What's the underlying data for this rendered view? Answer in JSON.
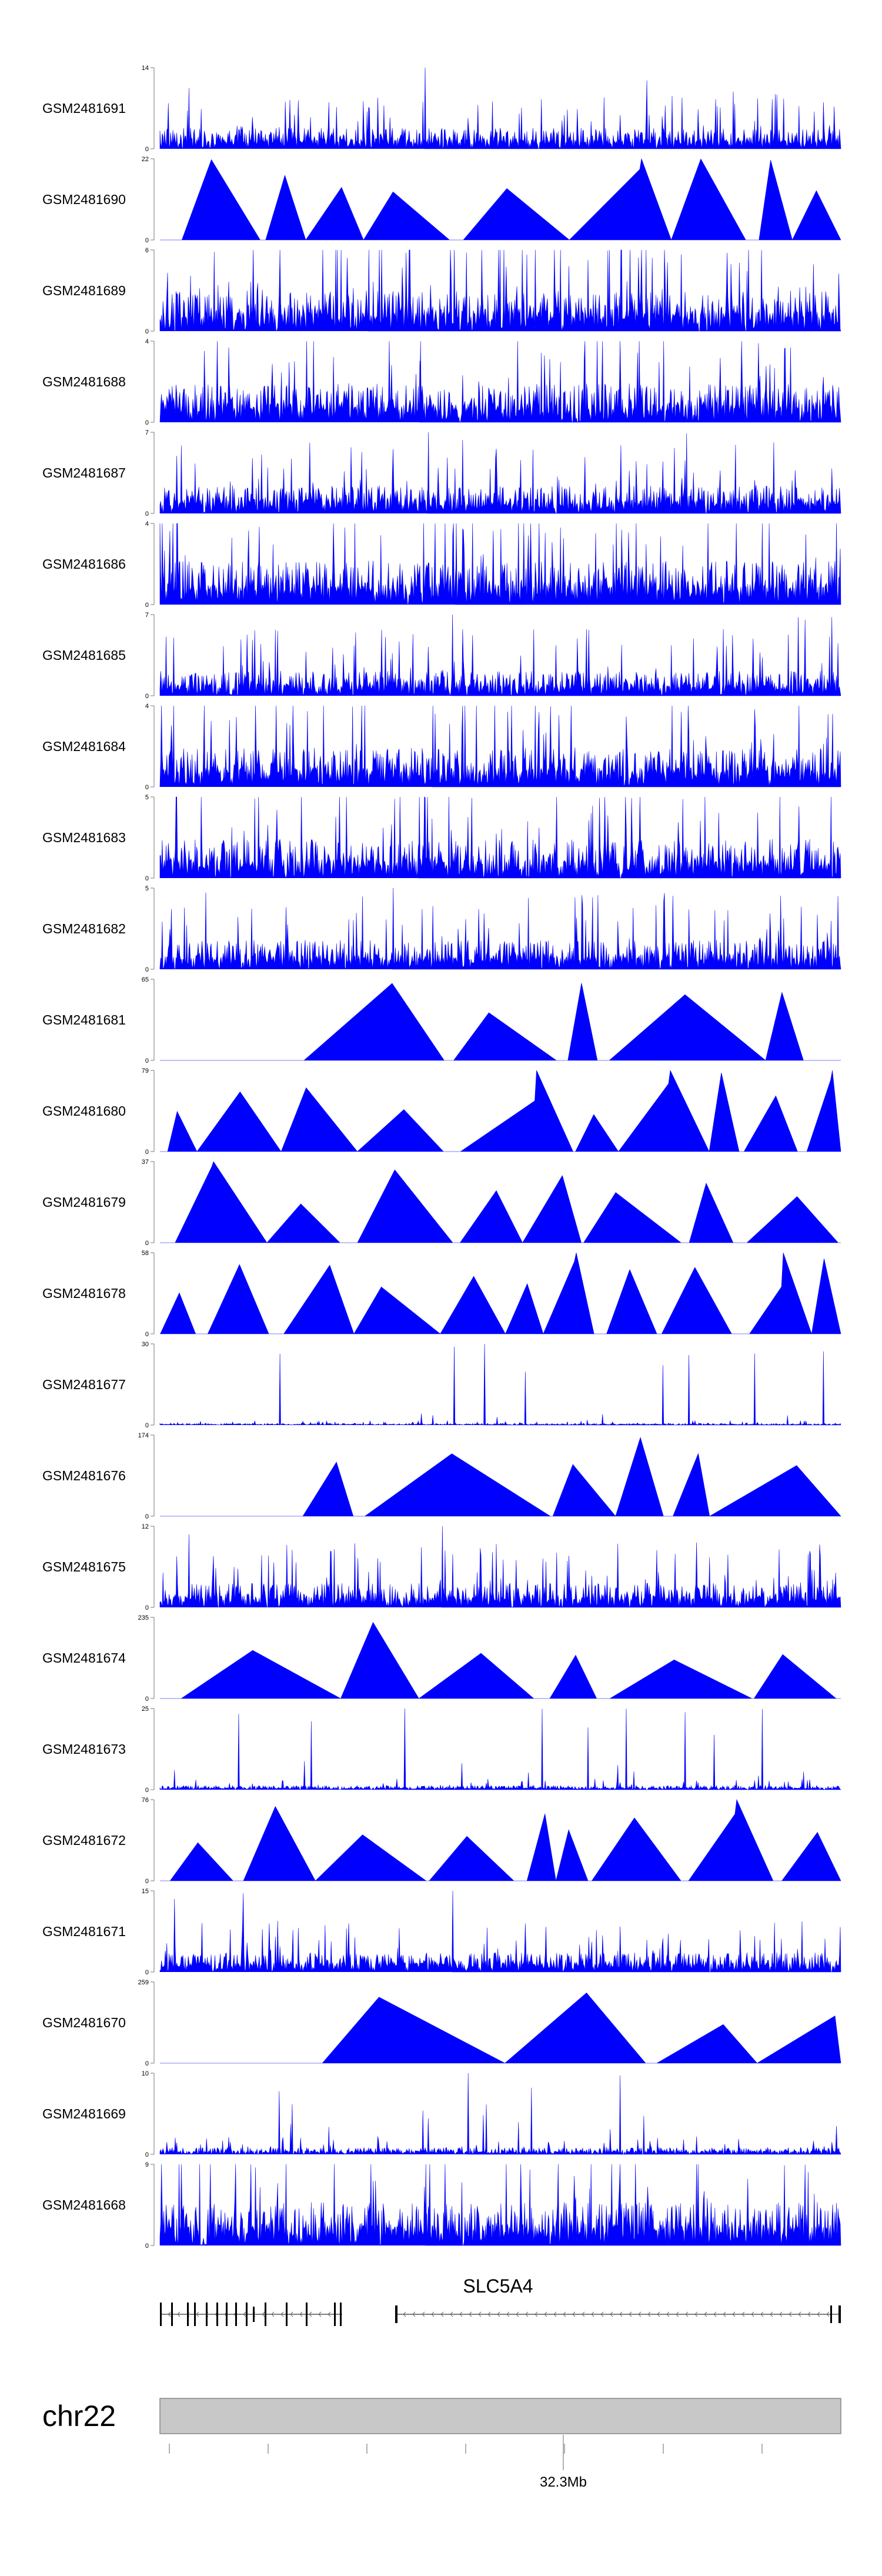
{
  "chart_data": {
    "type": "area",
    "title": "",
    "color": "#0000ff",
    "tracks": [
      {
        "name": "GSM2481691",
        "ymax": "14",
        "ymin": "0",
        "style": "dense",
        "peak": 14,
        "typical": 3
      },
      {
        "name": "GSM2481690",
        "ymax": "22",
        "ymin": "0",
        "style": "triangles",
        "peak": 22
      },
      {
        "name": "GSM2481689",
        "ymax": "6",
        "ymin": "0",
        "style": "dense",
        "peak": 6,
        "typical": 2.5
      },
      {
        "name": "GSM2481688",
        "ymax": "4",
        "ymin": "0",
        "style": "dense",
        "peak": 4,
        "typical": 1.6
      },
      {
        "name": "GSM2481687",
        "ymax": "7",
        "ymin": "0",
        "style": "dense",
        "peak": 7,
        "typical": 2
      },
      {
        "name": "GSM2481686",
        "ymax": "4",
        "ymin": "0",
        "style": "dense",
        "peak": 4,
        "typical": 1.8
      },
      {
        "name": "GSM2481685",
        "ymax": "7",
        "ymin": "0",
        "style": "dense",
        "peak": 7,
        "typical": 1.8
      },
      {
        "name": "GSM2481684",
        "ymax": "4",
        "ymin": "0",
        "style": "dense",
        "peak": 4,
        "typical": 1.6
      },
      {
        "name": "GSM2481683",
        "ymax": "5",
        "ymin": "0",
        "style": "dense",
        "peak": 5,
        "typical": 2
      },
      {
        "name": "GSM2481682",
        "ymax": "5",
        "ymin": "0",
        "style": "dense",
        "peak": 5,
        "typical": 1.5
      },
      {
        "name": "GSM2481681",
        "ymax": "65",
        "ymin": "0",
        "style": "triangles",
        "peak": 65
      },
      {
        "name": "GSM2481680",
        "ymax": "79",
        "ymin": "0",
        "style": "triangles",
        "peak": 79
      },
      {
        "name": "GSM2481679",
        "ymax": "37",
        "ymin": "0",
        "style": "triangles",
        "peak": 37
      },
      {
        "name": "GSM2481678",
        "ymax": "58",
        "ymin": "0",
        "style": "triangles",
        "peak": 58
      },
      {
        "name": "GSM2481677",
        "ymax": "30",
        "ymin": "0",
        "style": "spiky",
        "peak": 30,
        "typical": 1.5
      },
      {
        "name": "GSM2481676",
        "ymax": "174",
        "ymin": "0",
        "style": "triangles",
        "peak": 174
      },
      {
        "name": "GSM2481675",
        "ymax": "12",
        "ymin": "0",
        "style": "dense",
        "peak": 12,
        "typical": 3
      },
      {
        "name": "GSM2481674",
        "ymax": "235",
        "ymin": "0",
        "style": "triangles",
        "peak": 235
      },
      {
        "name": "GSM2481673",
        "ymax": "25",
        "ymin": "0",
        "style": "spiky",
        "peak": 25,
        "typical": 3
      },
      {
        "name": "GSM2481672",
        "ymax": "76",
        "ymin": "0",
        "style": "triangles",
        "peak": 76
      },
      {
        "name": "GSM2481671",
        "ymax": "15",
        "ymin": "0",
        "style": "dense",
        "peak": 15,
        "typical": 3
      },
      {
        "name": "GSM2481670",
        "ymax": "259",
        "ymin": "0",
        "style": "triangles",
        "peak": 259
      },
      {
        "name": "GSM2481669",
        "ymax": "10",
        "ymin": "0",
        "style": "spiky",
        "peak": 10,
        "typical": 2
      },
      {
        "name": "GSM2481668",
        "ymax": "9",
        "ymin": "0",
        "style": "dense",
        "peak": 9,
        "typical": 4
      }
    ],
    "gene": {
      "name": "SLC5A4"
    },
    "chromosome": {
      "name": "chr22",
      "position_label": "32.3Mb"
    }
  }
}
